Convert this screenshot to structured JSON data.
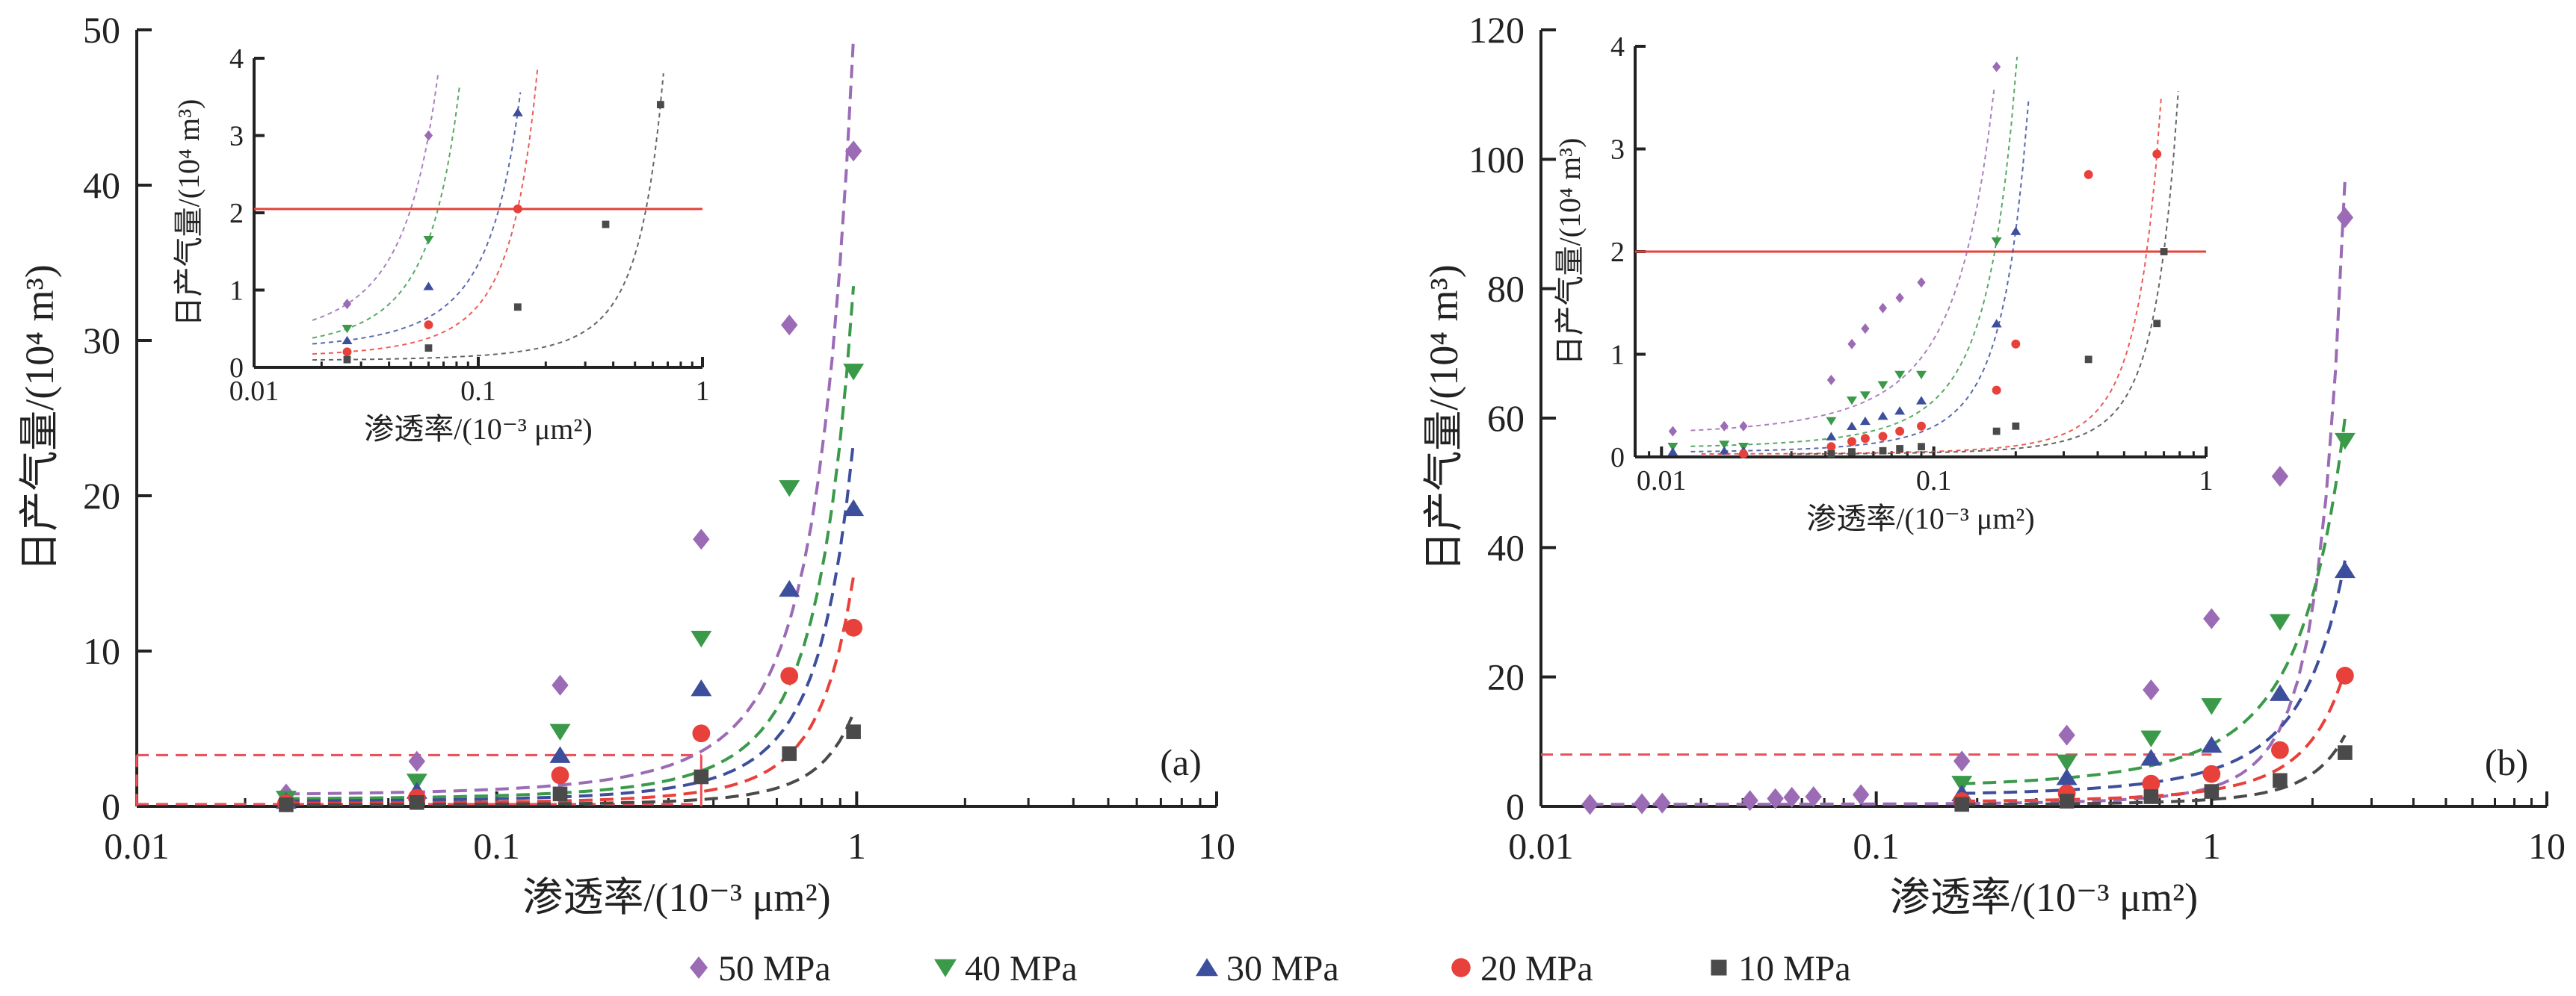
{
  "legend": [
    {
      "label": "50 MPa",
      "color": "#9b6bb5",
      "marker": "diamond"
    },
    {
      "label": "40 MPa",
      "color": "#3a9a4a",
      "marker": "triangle-down"
    },
    {
      "label": "30 MPa",
      "color": "#3d4f9c",
      "marker": "triangle-up"
    },
    {
      "label": "20 MPa",
      "color": "#e8403a",
      "marker": "circle"
    },
    {
      "label": "10 MPa",
      "color": "#4a4a4a",
      "marker": "square"
    }
  ],
  "chart_data": [
    {
      "type": "scatter",
      "panel_label": "(a)",
      "xlabel": "渗透率/(10⁻³ μm²)",
      "ylabel": "日产气量/(10⁴ m³)",
      "xscale": "log",
      "xlim": [
        0.01,
        10
      ],
      "ylim": [
        0,
        50
      ],
      "xticks": [
        "0.01",
        "0.1",
        "1",
        "10"
      ],
      "yticks": [
        "0",
        "10",
        "20",
        "30",
        "40",
        "50"
      ],
      "reference_line_y": 3.3,
      "reference_line_x": 0.37,
      "series": [
        {
          "name": "50 MPa",
          "x": [
            0.026,
            0.06,
            0.15,
            0.37,
            0.65,
            0.98
          ],
          "y": [
            0.8,
            2.9,
            7.8,
            17.2,
            31.0,
            42.2
          ],
          "fit_end_y": 49.5
        },
        {
          "name": "40 MPa",
          "x": [
            0.026,
            0.06,
            0.15,
            0.37,
            0.65,
            0.98
          ],
          "y": [
            0.5,
            1.6,
            4.8,
            10.8,
            20.5,
            28.0
          ],
          "fit_end_y": 33.5
        },
        {
          "name": "30 MPa",
          "x": [
            0.026,
            0.06,
            0.15,
            0.37,
            0.65,
            0.98
          ],
          "y": [
            0.35,
            1.0,
            3.3,
            7.6,
            14.0,
            19.2
          ],
          "fit_end_y": 23.5
        },
        {
          "name": "20 MPa",
          "x": [
            0.026,
            0.06,
            0.15,
            0.37,
            0.65,
            0.98
          ],
          "y": [
            0.2,
            0.55,
            2.0,
            4.7,
            8.4,
            11.5
          ],
          "fit_end_y": 14.8
        },
        {
          "name": "10 MPa",
          "x": [
            0.026,
            0.06,
            0.15,
            0.37,
            0.65,
            0.98
          ],
          "y": [
            0.1,
            0.25,
            0.8,
            1.9,
            3.4,
            4.8
          ],
          "fit_end_y": 6.0
        }
      ],
      "inset": {
        "xlabel": "渗透率/(10⁻³ μm²)",
        "ylabel": "日产气量/(10⁴ m³)",
        "xscale": "log",
        "xlim": [
          0.01,
          1
        ],
        "ylim": [
          0,
          4
        ],
        "xticks": [
          "0.01",
          "0.1",
          "1"
        ],
        "yticks": [
          "0",
          "1",
          "2",
          "3",
          "4"
        ],
        "reference_line_y": 2.05,
        "series": [
          {
            "name": "50 MPa",
            "x": [
              0.026,
              0.06
            ],
            "y": [
              0.82,
              3.0
            ]
          },
          {
            "name": "40 MPa",
            "x": [
              0.026,
              0.06
            ],
            "y": [
              0.5,
              1.65
            ]
          },
          {
            "name": "30 MPa",
            "x": [
              0.026,
              0.06,
              0.15
            ],
            "y": [
              0.35,
              1.05,
              3.3
            ]
          },
          {
            "name": "20 MPa",
            "x": [
              0.026,
              0.06,
              0.15
            ],
            "y": [
              0.2,
              0.55,
              2.05
            ]
          },
          {
            "name": "10 MPa",
            "x": [
              0.026,
              0.06,
              0.15,
              0.37,
              0.65
            ],
            "y": [
              0.1,
              0.25,
              0.78,
              1.85,
              3.4
            ]
          }
        ]
      }
    },
    {
      "type": "scatter",
      "panel_label": "(b)",
      "xlabel": "渗透率/(10⁻³ μm²)",
      "ylabel": "日产气量/(10⁴ m³)",
      "xscale": "log",
      "xlim": [
        0.01,
        10
      ],
      "ylim": [
        0,
        120
      ],
      "xticks": [
        "0.01",
        "0.1",
        "1",
        "10"
      ],
      "yticks": [
        "0",
        "20",
        "40",
        "60",
        "80",
        "100",
        "120"
      ],
      "reference_line_y": 8.0,
      "series": [
        {
          "name": "50 MPa",
          "x": [
            0.014,
            0.02,
            0.023,
            0.042,
            0.05,
            0.056,
            0.065,
            0.09,
            0.18,
            0.37,
            0.66,
            1.0,
            1.6,
            2.5
          ],
          "y": [
            0.3,
            0.4,
            0.5,
            0.9,
            1.2,
            1.4,
            1.5,
            1.8,
            7.0,
            11.0,
            18.0,
            29.0,
            51.0,
            91.0
          ],
          "fit_end_y": 97
        },
        {
          "name": "40 MPa",
          "x": [
            0.18,
            0.37,
            0.66,
            1.0,
            1.6,
            2.5
          ],
          "y": [
            3.5,
            6.8,
            10.5,
            15.5,
            28.5,
            56.5
          ],
          "fit_end_y": 60
        },
        {
          "name": "30 MPa",
          "x": [
            0.18,
            0.37,
            0.66,
            1.0,
            1.6,
            2.5
          ],
          "y": [
            2.0,
            4.5,
            7.5,
            9.5,
            17.5,
            36.5
          ],
          "fit_end_y": 38
        },
        {
          "name": "20 MPa",
          "x": [
            0.18,
            0.37,
            0.66,
            1.0,
            1.6,
            2.5
          ],
          "y": [
            0.8,
            2.0,
            3.5,
            5.0,
            8.7,
            20.2
          ],
          "fit_end_y": 21
        },
        {
          "name": "10 MPa",
          "x": [
            0.18,
            0.37,
            0.66,
            1.0,
            1.6,
            2.5
          ],
          "y": [
            0.3,
            0.8,
            1.5,
            2.3,
            4.0,
            8.3
          ],
          "fit_end_y": 11
        }
      ],
      "inset": {
        "xlabel": "渗透率/(10⁻³ μm²)",
        "ylabel": "日产气量/(10⁴ m³)",
        "xscale": "log",
        "xlim": [
          0.008,
          1
        ],
        "ylim": [
          0,
          4
        ],
        "xticks": [
          "0.01",
          "0.1",
          "1"
        ],
        "yticks": [
          "0",
          "1",
          "2",
          "3",
          "4"
        ],
        "reference_line_y": 2.0,
        "series": [
          {
            "name": "50 MPa",
            "x": [
              0.011,
              0.017,
              0.02,
              0.042,
              0.05,
              0.056,
              0.065,
              0.075,
              0.09,
              0.17
            ],
            "y": [
              0.25,
              0.3,
              0.3,
              0.75,
              1.1,
              1.25,
              1.45,
              1.55,
              1.7,
              3.8
            ]
          },
          {
            "name": "40 MPa",
            "x": [
              0.011,
              0.017,
              0.02,
              0.042,
              0.05,
              0.056,
              0.065,
              0.075,
              0.09,
              0.17
            ],
            "y": [
              0.1,
              0.12,
              0.1,
              0.35,
              0.55,
              0.6,
              0.7,
              0.8,
              0.8,
              2.1
            ]
          },
          {
            "name": "30 MPa",
            "x": [
              0.011,
              0.017,
              0.02,
              0.042,
              0.05,
              0.056,
              0.065,
              0.075,
              0.09,
              0.17,
              0.2
            ],
            "y": [
              0.05,
              0.06,
              0.06,
              0.2,
              0.3,
              0.35,
              0.4,
              0.45,
              0.55,
              1.3,
              2.2
            ]
          },
          {
            "name": "20 MPa",
            "x": [
              0.02,
              0.042,
              0.05,
              0.056,
              0.065,
              0.075,
              0.09,
              0.17,
              0.2,
              0.37,
              0.66
            ],
            "y": [
              0.03,
              0.1,
              0.15,
              0.18,
              0.2,
              0.25,
              0.3,
              0.65,
              1.1,
              2.75,
              2.95
            ]
          },
          {
            "name": "10 MPa",
            "x": [
              0.042,
              0.05,
              0.065,
              0.075,
              0.09,
              0.17,
              0.2,
              0.37,
              0.66,
              0.7
            ],
            "y": [
              0.03,
              0.05,
              0.06,
              0.08,
              0.1,
              0.25,
              0.3,
              0.95,
              1.3,
              2.0
            ]
          }
        ]
      }
    }
  ]
}
